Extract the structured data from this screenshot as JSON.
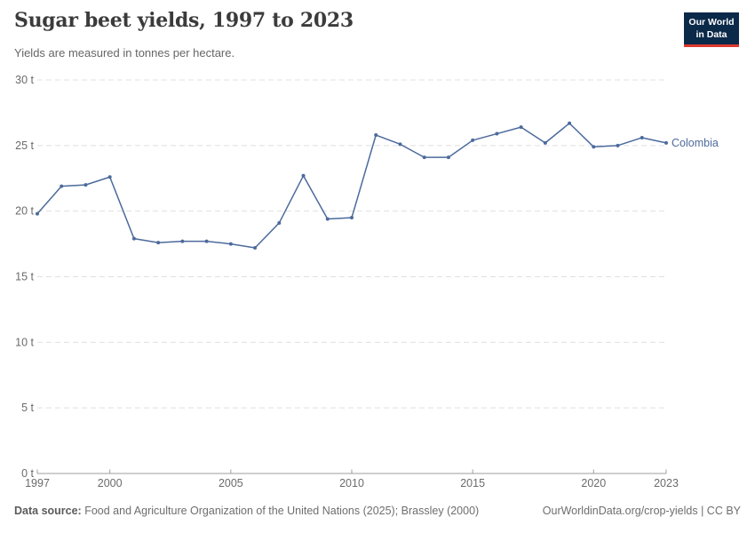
{
  "header": {
    "title": "Sugar beet yields, 1997 to 2023",
    "subtitle": "Yields are measured in tonnes per hectare.",
    "logo": {
      "line1": "Our World",
      "line2": "in Data",
      "bg_color": "#0b2949",
      "accent_color": "#DB3A2F"
    }
  },
  "chart_data": {
    "type": "line",
    "x": [
      1997,
      1998,
      1999,
      2000,
      2001,
      2002,
      2003,
      2004,
      2005,
      2006,
      2007,
      2008,
      2009,
      2010,
      2011,
      2012,
      2013,
      2014,
      2015,
      2016,
      2017,
      2018,
      2019,
      2020,
      2021,
      2022,
      2023
    ],
    "series": [
      {
        "name": "Colombia",
        "color": "#4C6A9C",
        "values": [
          19.8,
          21.9,
          22.0,
          22.6,
          17.9,
          17.6,
          17.7,
          17.7,
          17.5,
          17.2,
          19.1,
          22.7,
          19.4,
          19.5,
          25.8,
          25.1,
          24.1,
          24.1,
          25.4,
          25.9,
          26.4,
          25.2,
          26.7,
          24.9,
          25.0,
          25.6,
          25.2
        ]
      }
    ],
    "title": "Sugar beet yields, 1997 to 2023",
    "xlabel": "",
    "ylabel": "tonnes per hectare",
    "unit": "t",
    "xlim": [
      1997,
      2023
    ],
    "ylim": [
      0,
      30
    ],
    "yticks": [
      {
        "value": 0,
        "label": "0 t"
      },
      {
        "value": 5,
        "label": "5 t"
      },
      {
        "value": 10,
        "label": "10 t"
      },
      {
        "value": 15,
        "label": "15 t"
      },
      {
        "value": 20,
        "label": "20 t"
      },
      {
        "value": 25,
        "label": "25 t"
      },
      {
        "value": 30,
        "label": "30 t"
      }
    ],
    "xticks": [
      {
        "value": 1997,
        "label": "1997"
      },
      {
        "value": 2000,
        "label": "2000"
      },
      {
        "value": 2005,
        "label": "2005"
      },
      {
        "value": 2010,
        "label": "2010"
      },
      {
        "value": 2015,
        "label": "2015"
      },
      {
        "value": 2020,
        "label": "2020"
      },
      {
        "value": 2023,
        "label": "2023"
      }
    ],
    "grid": "dashed-horizontal",
    "legend_position": "end-of-line",
    "colors": {
      "grid": "#e0e0e0",
      "axis": "#9e9e9e",
      "tick_label": "#6b6b6b"
    }
  },
  "footer": {
    "data_source_label": "Data source:",
    "data_source_text": " Food and Agriculture Organization of the United Nations (2025); Brassley (2000)",
    "credit": "OurWorldinData.org/crop-yields | CC BY"
  }
}
